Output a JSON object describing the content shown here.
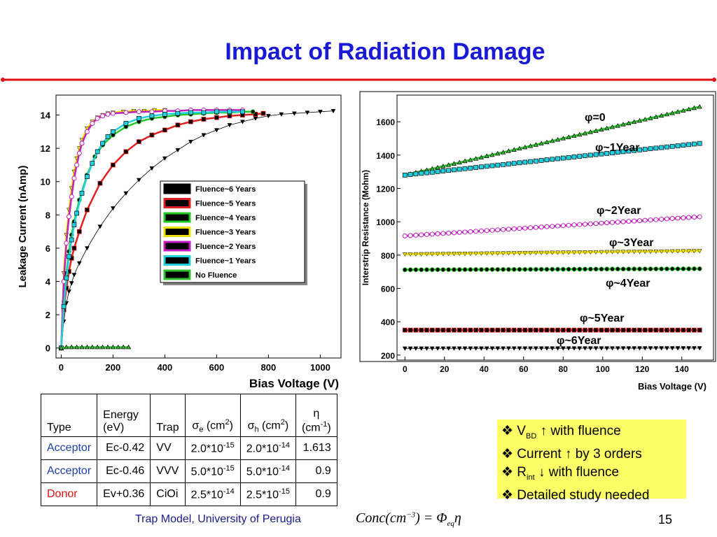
{
  "title": "Impact of Radiation Damage",
  "chart_data": [
    {
      "type": "scatter",
      "ylabel": "Leakage Current (nAmp)",
      "xlabel": "Bias Voltage (V)",
      "xlim": [
        -20,
        1080
      ],
      "ylim": [
        -0.6,
        15.2
      ],
      "xticks": [
        0,
        200,
        400,
        600,
        800,
        1000
      ],
      "yticks": [
        0,
        2,
        4,
        6,
        8,
        10,
        12,
        14
      ],
      "legend_position": "center-right",
      "series": [
        {
          "name": "Fluence~6 Years",
          "color": "#000000",
          "marker": "triangle-down",
          "x": [
            0,
            10,
            20,
            30,
            40,
            50,
            70,
            100,
            150,
            200,
            250,
            300,
            350,
            400,
            450,
            500,
            550,
            600,
            650,
            700,
            750,
            800,
            850,
            900,
            950,
            1000,
            1050
          ],
          "y": [
            0,
            1.6,
            2.7,
            3.4,
            3.9,
            4.4,
            5.1,
            6.0,
            7.3,
            8.4,
            9.3,
            10.1,
            10.8,
            11.4,
            11.9,
            12.4,
            12.8,
            13.1,
            13.4,
            13.6,
            13.8,
            13.95,
            14.05,
            14.1,
            14.15,
            14.2,
            14.25
          ]
        },
        {
          "name": "Fluence~5 Years",
          "color": "#e02020",
          "marker": "square",
          "x": [
            0,
            10,
            20,
            30,
            40,
            50,
            70,
            100,
            150,
            200,
            250,
            300,
            350,
            400,
            450,
            500,
            550,
            600,
            650,
            700,
            750,
            780
          ],
          "y": [
            0,
            2.3,
            3.6,
            4.6,
            5.4,
            6.0,
            7.0,
            8.3,
            9.9,
            11.0,
            11.8,
            12.4,
            12.8,
            13.1,
            13.4,
            13.6,
            13.75,
            13.85,
            13.95,
            14.0,
            14.05,
            14.1
          ]
        },
        {
          "name": "Fluence~4 Years",
          "color": "#22c822",
          "marker": "circle-filled",
          "x": [
            0,
            10,
            20,
            30,
            40,
            50,
            70,
            100,
            130,
            160,
            200,
            250,
            300,
            350,
            400,
            450,
            500,
            550,
            600,
            650,
            700,
            740
          ],
          "y": [
            0,
            2.8,
            4.5,
            5.8,
            6.8,
            7.6,
            8.9,
            10.4,
            11.5,
            12.2,
            12.8,
            13.3,
            13.6,
            13.8,
            13.9,
            14.0,
            14.05,
            14.1,
            14.15,
            14.15,
            14.2,
            14.2
          ]
        },
        {
          "name": "Fluence~3 Years",
          "color": "#f0e000",
          "marker": "triangle-down",
          "x": [
            0,
            10,
            20,
            30,
            40,
            50,
            60,
            70,
            80,
            100,
            120,
            140,
            160,
            180,
            200,
            240,
            280,
            320,
            360,
            400
          ],
          "y": [
            0,
            4.5,
            6.8,
            8.3,
            9.6,
            10.6,
            11.4,
            12.0,
            12.5,
            13.2,
            13.6,
            13.85,
            14.0,
            14.1,
            14.15,
            14.2,
            14.25,
            14.25,
            14.3,
            14.3
          ]
        },
        {
          "name": "Fluence~2 Years",
          "color": "#c020c0",
          "marker": "circle-open",
          "x": [
            0,
            10,
            20,
            30,
            40,
            50,
            60,
            70,
            80,
            100,
            120,
            140,
            160,
            180,
            200,
            250,
            300,
            350,
            400,
            450,
            500,
            550,
            600,
            650,
            700
          ],
          "y": [
            0,
            4.0,
            6.3,
            7.9,
            9.1,
            10.2,
            11.0,
            11.7,
            12.3,
            13.0,
            13.5,
            13.8,
            13.95,
            14.05,
            14.1,
            14.15,
            14.2,
            14.2,
            14.25,
            14.25,
            14.3,
            14.3,
            14.3,
            14.3,
            14.3
          ]
        },
        {
          "name": "Fluence~1 Years",
          "color": "#20d0e0",
          "marker": "square-open",
          "x": [
            0,
            10,
            20,
            30,
            40,
            50,
            60,
            80,
            100,
            120,
            140,
            160,
            180,
            200,
            250,
            300,
            350,
            400,
            450,
            500,
            550,
            600,
            650,
            700
          ],
          "y": [
            0,
            2.5,
            4.2,
            5.5,
            6.5,
            7.4,
            8.1,
            9.3,
            10.3,
            11.1,
            11.8,
            12.3,
            12.7,
            13.0,
            13.5,
            13.8,
            13.95,
            14.05,
            14.1,
            14.15,
            14.15,
            14.2,
            14.2,
            14.2
          ]
        },
        {
          "name": "No Fluence",
          "color": "#30c030",
          "marker": "triangle-up-open",
          "x": [
            0,
            20,
            40,
            60,
            80,
            100,
            120,
            140,
            160,
            180,
            200,
            220,
            240,
            260
          ],
          "y": [
            0,
            0.05,
            0.05,
            0.05,
            0.05,
            0.05,
            0.05,
            0.05,
            0.05,
            0.05,
            0.05,
            0.05,
            0.05,
            0.05
          ]
        }
      ]
    },
    {
      "type": "scatter",
      "ylabel": "Interstrip Resistance (Mohm)",
      "xlabel": "Bias Voltage (V)",
      "xlim": [
        -4,
        156
      ],
      "ylim": [
        170,
        1760
      ],
      "xticks": [
        0,
        20,
        40,
        60,
        80,
        100,
        120,
        140
      ],
      "yticks": [
        200,
        400,
        600,
        800,
        1000,
        1200,
        1400,
        1600
      ],
      "series": [
        {
          "name": "φ=0",
          "color": "#30c030",
          "marker": "triangle-up-open",
          "x_start": 0,
          "x_end": 149,
          "y_start": 1280,
          "y_end": 1690
        },
        {
          "name": "φ~1Year",
          "color": "#20d0e0",
          "marker": "square-open",
          "x_start": 0,
          "x_end": 149,
          "y_start": 1280,
          "y_end": 1470
        },
        {
          "name": "φ~2Year",
          "color": "#c020c0",
          "marker": "circle-open",
          "x_start": 0,
          "x_end": 149,
          "y_start": 915,
          "y_end": 1030
        },
        {
          "name": "φ~3Year",
          "color": "#f0e000",
          "marker": "triangle-down",
          "x_start": 0,
          "x_end": 149,
          "y_start": 805,
          "y_end": 825
        },
        {
          "name": "φ~4Year",
          "color": "#22c822",
          "marker": "circle-filled",
          "x_start": 0,
          "x_end": 149,
          "y_start": 712,
          "y_end": 718
        },
        {
          "name": "φ~5Year",
          "color": "#e02020",
          "marker": "square",
          "x_start": 0,
          "x_end": 149,
          "y_start": 350,
          "y_end": 350
        },
        {
          "name": "φ~6Year",
          "color": "#000000",
          "marker": "triangle-down",
          "x_start": 0,
          "x_end": 149,
          "y_start": 240,
          "y_end": 242
        }
      ],
      "annotations": [
        "φ=0",
        "φ~1Year",
        "φ~2Year",
        "φ~3Year",
        "φ~4Year",
        "φ~5Year",
        "φ~6Year"
      ]
    }
  ],
  "table": {
    "headers": [
      {
        "lines": [
          "Type"
        ]
      },
      {
        "lines": [
          "Energy",
          "(eV)"
        ]
      },
      {
        "lines": [
          "Trap"
        ]
      },
      {
        "main": "σ",
        "sub": "e",
        "unit": " (cm",
        "sup": "2",
        "close": ")"
      },
      {
        "main": "σ",
        "sub": "h",
        "unit": " (cm",
        "sup": "2",
        "close": ")"
      },
      {
        "lines": [
          "η",
          "(cm-1)"
        ]
      }
    ],
    "rows": [
      {
        "type": "Acceptor",
        "kind": "acceptor",
        "energy": "Ec-0.42",
        "trap": "VV",
        "se_base": "2.0*10",
        "se_exp": "-15",
        "sh_base": "2.0*10",
        "sh_exp": "-14",
        "eta": "1.613"
      },
      {
        "type": "Acceptor",
        "kind": "acceptor",
        "energy": "Ec-0.46",
        "trap": "VVV",
        "se_base": "5.0*10",
        "se_exp": "-15",
        "sh_base": "5.0*10",
        "sh_exp": "-14",
        "eta": "0.9"
      },
      {
        "type": "Donor",
        "kind": "donor",
        "energy": "Ev+0.36",
        "trap": "CiOi",
        "se_base": "2.5*10",
        "se_exp": "-14",
        "sh_base": "2.5*10",
        "sh_exp": "-15",
        "eta": "0.9"
      }
    ]
  },
  "notes": {
    "bullet": "❖",
    "items": [
      {
        "pre": "V",
        "sub": "BD",
        "post": " ↑ with fluence"
      },
      {
        "pre": "Current ↑ by 3 orders",
        "sub": "",
        "post": ""
      },
      {
        "pre": "R",
        "sub": "int",
        "post": " ↓ with fluence"
      },
      {
        "pre": "Detailed study needed",
        "sub": "",
        "post": ""
      }
    ]
  },
  "footer": "Trap Model, University of  Perugia",
  "formula": {
    "a": "Conc(cm",
    "sup": "−3",
    "b": ") = Φ",
    "sub": "eq",
    "c": "η"
  },
  "page_number": "15",
  "colors": {
    "title": "#1a1ad6",
    "accent_red": "#e01010",
    "notes_bg": "#ffff66"
  }
}
